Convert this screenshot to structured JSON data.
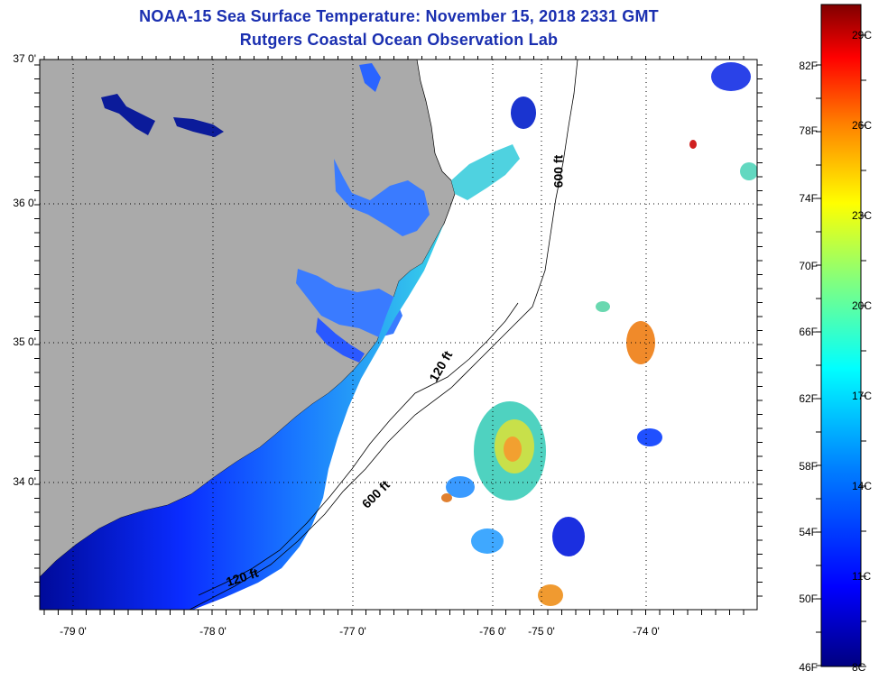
{
  "title": {
    "line1": "NOAA-15 Sea Surface Temperature:  November 15, 2018 2331 GMT",
    "line2": "Rutgers Coastal Ocean Observation Lab"
  },
  "map": {
    "lat_labels": [
      "37 0'",
      "36 0'",
      "35 0'",
      "34 0'"
    ],
    "lon_labels": [
      "-79 0'",
      "-78 0'",
      "-77 0'",
      "-76 0'",
      "-75 0'",
      "-74 0'"
    ],
    "contour_labels": [
      "600 ft",
      "120 ft",
      "600 ft",
      "120 ft"
    ],
    "colors": {
      "land": "#aaaaaa",
      "frame": "#000000",
      "grid": "#000000"
    }
  },
  "colorbar": {
    "fahrenheit": [
      "82F",
      "78F",
      "74F",
      "70F",
      "66F",
      "62F",
      "58F",
      "54F",
      "50F",
      "46F"
    ],
    "celsius": [
      "29C",
      "26C",
      "23C",
      "20C",
      "17C",
      "14C",
      "11C",
      "8C"
    ],
    "colors": [
      "#000080",
      "#0000ff",
      "#0080ff",
      "#00ffff",
      "#80ff80",
      "#ffff00",
      "#ff8000",
      "#ff0000",
      "#800000"
    ]
  }
}
